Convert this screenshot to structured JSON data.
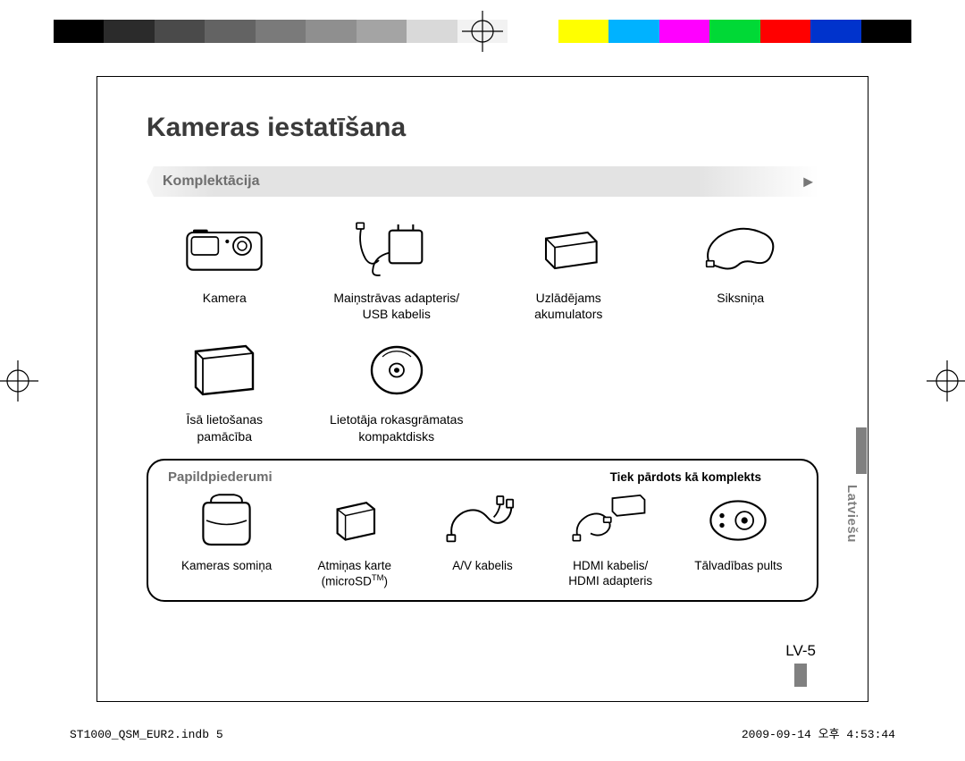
{
  "color_bar": [
    "#000000",
    "#2b2b2b",
    "#4a4a4a",
    "#636363",
    "#7a7a7a",
    "#8f8f8f",
    "#a4a4a4",
    "#d9d9d9",
    "#f2f2f2",
    "#ffffff",
    "#ffff00",
    "#00b2ff",
    "#ff00ff",
    "#00d936",
    "#ff0000",
    "#0033cc",
    "#000000"
  ],
  "page": {
    "title": "Kameras iestatīšana",
    "section_title": "Komplektācija",
    "lang_tab": "Latviešu",
    "page_number": "LV-5"
  },
  "items_row1": [
    {
      "label": "Kamera"
    },
    {
      "label": "Maiņstrāvas adapteris/\nUSB kabelis"
    },
    {
      "label": "Uzlādējams\nakumulators"
    },
    {
      "label": "Siksniņa"
    }
  ],
  "items_row2": [
    {
      "label": "Īsā lietošanas\npamācība"
    },
    {
      "label": "Lietotāja rokasgrāmatas\nkompaktdisks"
    }
  ],
  "accessories": {
    "title": "Papildpiederumi",
    "note": "Tiek pārdots kā komplekts",
    "items": [
      {
        "label": "Kameras somiņa"
      },
      {
        "label": "Atmiņas karte\n(microSD™)"
      },
      {
        "label": "A/V kabelis"
      },
      {
        "label": "HDMI kabelis/\nHDMI adapteris"
      },
      {
        "label": "Tālvadības pults"
      }
    ]
  },
  "footer": {
    "left": "ST1000_QSM_EUR2.indb   5",
    "right": "2009-09-14   오후 4:53:44"
  },
  "style": {
    "title_color": "#3a3a3a",
    "section_label_color": "#6e6e6e",
    "lang_tab_color": "#808080",
    "background": "#ffffff"
  }
}
